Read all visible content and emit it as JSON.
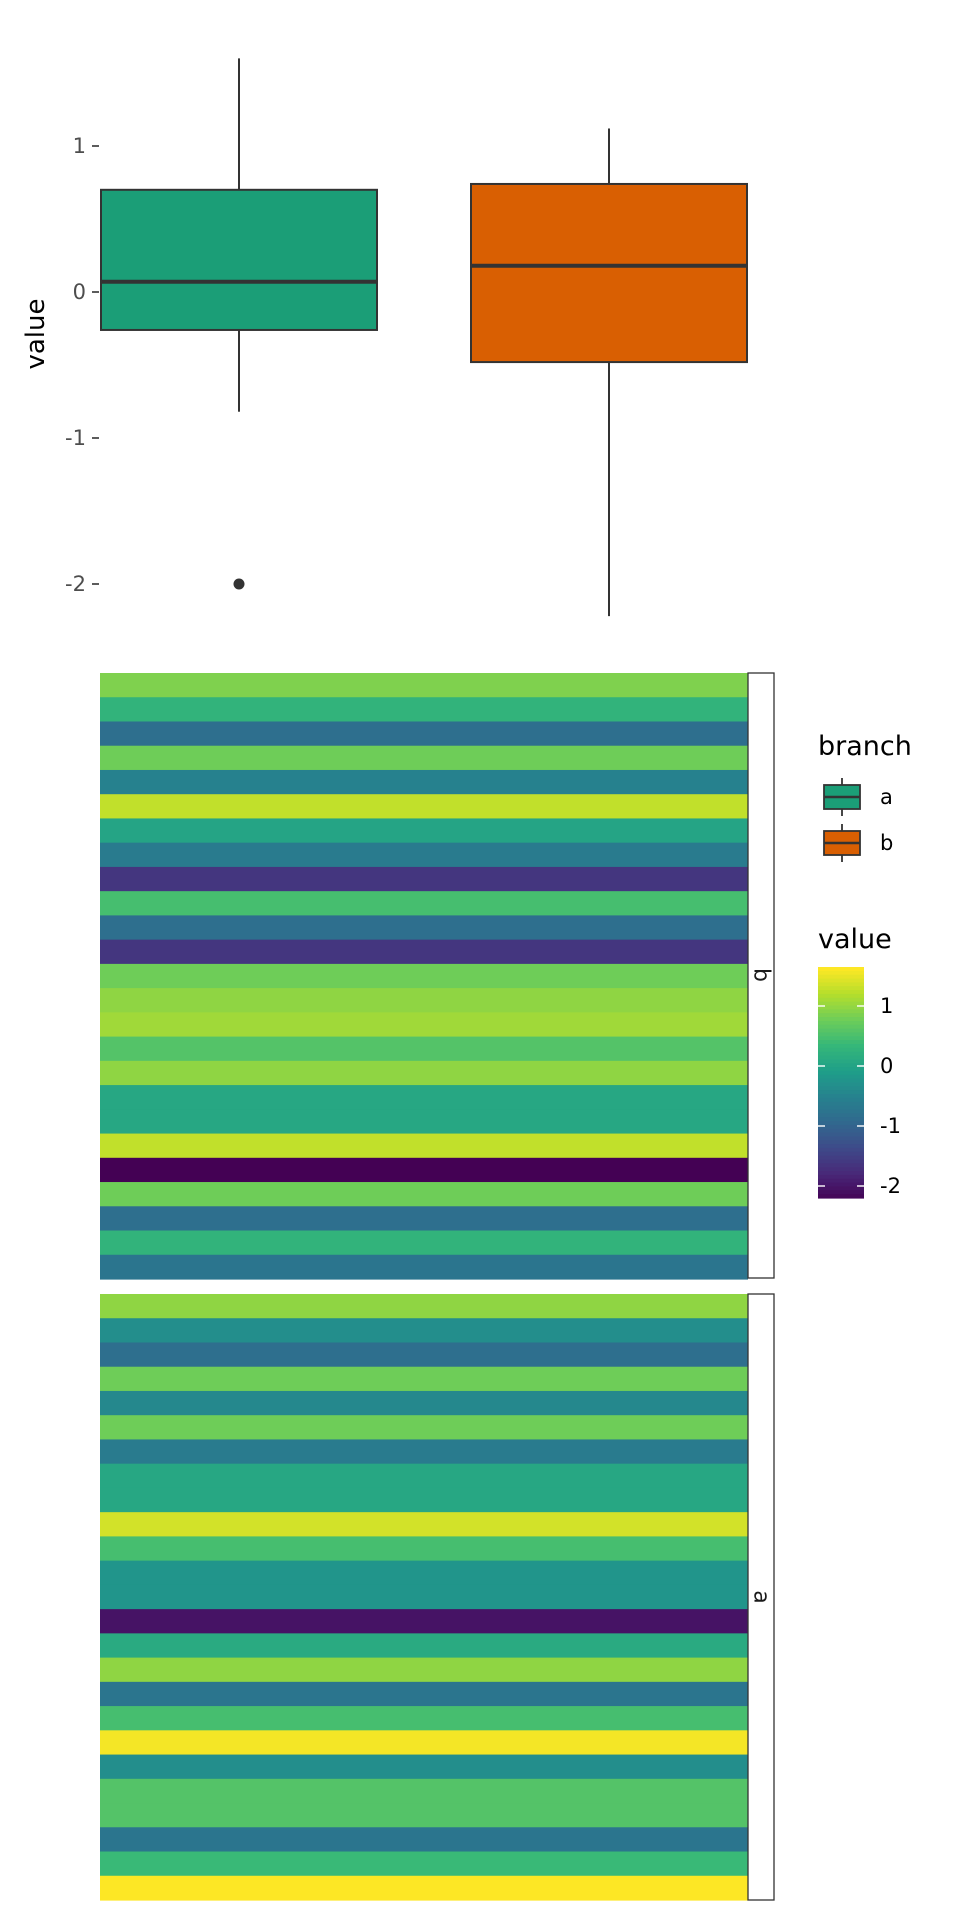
{
  "chart_data": [
    {
      "type": "boxplot",
      "ylabel": "value",
      "ylim": [
        -2.2,
        1.6
      ],
      "y_ticks": [
        1,
        0,
        -1,
        -2
      ],
      "y_tick_labels": [
        "1",
        "0",
        "-1",
        "-2"
      ],
      "grid": false,
      "boxes": [
        {
          "group": "a",
          "color": "#1B9E77",
          "whisker_high": 1.6,
          "q3": 0.7,
          "median": 0.07,
          "q1": -0.26,
          "whisker_low": -0.82,
          "outliers": [
            -2.0
          ]
        },
        {
          "group": "b",
          "color": "#D95F02",
          "whisker_high": 1.12,
          "q3": 0.74,
          "median": 0.18,
          "q1": -0.48,
          "whisker_low": -2.22,
          "outliers": []
        }
      ]
    },
    {
      "type": "heatmap",
      "panels": [
        {
          "strip_label": "b",
          "values": [
            0.9,
            0.3,
            -0.8,
            0.8,
            -0.5,
            1.3,
            0.05,
            -0.6,
            -1.6,
            0.5,
            -0.8,
            -1.6,
            0.8,
            1.0,
            1.1,
            0.6,
            1.0,
            0.1,
            0.1,
            1.3,
            -2.2,
            0.8,
            -0.8,
            0.3,
            -0.7
          ]
        },
        {
          "strip_label": "a",
          "values": [
            1.0,
            -0.3,
            -0.8,
            0.8,
            -0.4,
            0.8,
            -0.6,
            0.1,
            0.1,
            1.4,
            0.5,
            -0.2,
            -0.2,
            -2.0,
            0.15,
            1.0,
            -0.7,
            0.5,
            1.6,
            -0.3,
            0.6,
            0.6,
            -0.7,
            0.4,
            1.65
          ]
        }
      ]
    }
  ],
  "legend_branch": {
    "title": "branch",
    "items": [
      {
        "label": "a",
        "color": "#1B9E77"
      },
      {
        "label": "b",
        "color": "#D95F02"
      }
    ]
  },
  "legend_value": {
    "title": "value",
    "scale": "viridis",
    "range": [
      -2.2,
      1.65
    ],
    "tick_values": [
      1,
      0,
      -1,
      -2
    ],
    "tick_labels": [
      "1",
      "0",
      "-1",
      "-2"
    ]
  }
}
